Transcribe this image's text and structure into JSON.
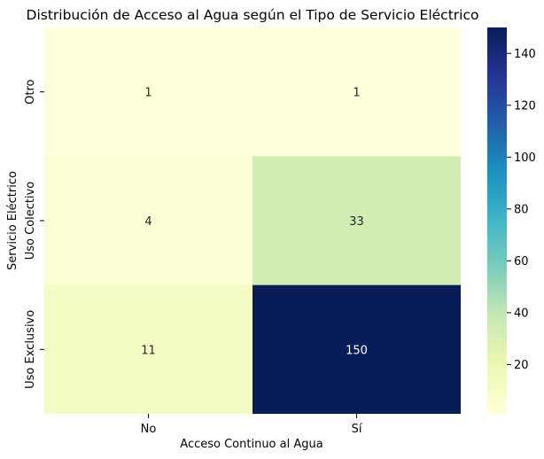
{
  "chart_data": {
    "type": "heatmap",
    "title": "Distribución de Acceso al Agua según el Tipo de Servicio Eléctrico",
    "xlabel": "Acceso Continuo al Agua",
    "ylabel": "Servicio Eléctrico",
    "x_categories": [
      "No",
      "Sí"
    ],
    "y_categories": [
      "Otro",
      "Uso Colectivo",
      "Uso Exclusivo"
    ],
    "values": [
      [
        1,
        1
      ],
      [
        4,
        33
      ],
      [
        11,
        150
      ]
    ],
    "annotations": [
      [
        "1",
        "1"
      ],
      [
        "4",
        "33"
      ],
      [
        "11",
        "150"
      ]
    ],
    "colormap": "YlGnBu",
    "color_range": [
      1,
      150
    ],
    "colorbar_ticks": [
      "20",
      "40",
      "60",
      "80",
      "100",
      "120",
      "140"
    ],
    "colorbar_tick_values": [
      20,
      40,
      60,
      80,
      100,
      120,
      140
    ],
    "colors": {
      "low": "#ffffd9",
      "high": "#081d58",
      "annotation_light": "#262626",
      "annotation_dark": "#ffffff"
    }
  }
}
